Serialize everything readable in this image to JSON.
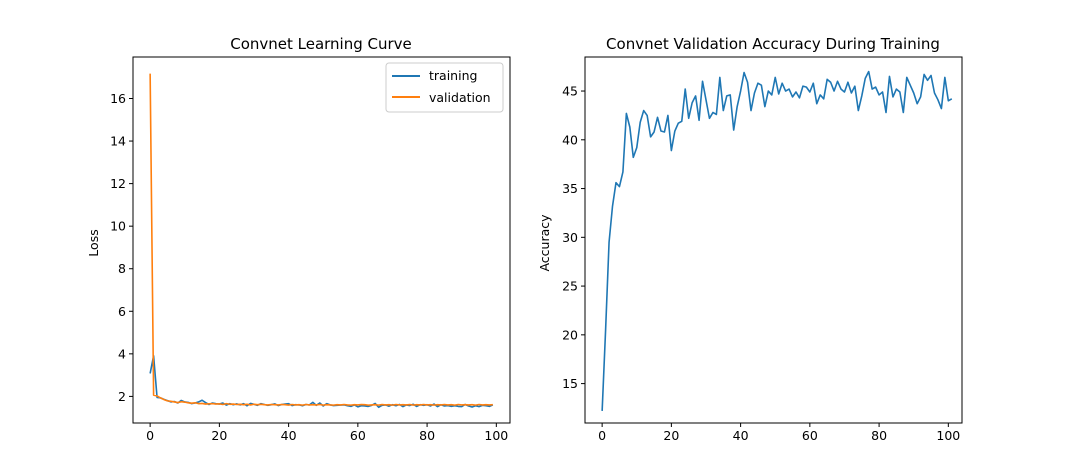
{
  "colors": {
    "training": "#1f77b4",
    "validation": "#ff7f0e"
  },
  "chart_data": [
    {
      "type": "line",
      "title": "Convnet Learning Curve",
      "xlabel": "",
      "ylabel": "Loss",
      "xlim": [
        -4.95,
        103.95
      ],
      "ylim": [
        0.75,
        17.95
      ],
      "xticks": [
        0,
        20,
        40,
        60,
        80,
        100
      ],
      "yticks": [
        2,
        4,
        6,
        8,
        10,
        12,
        14,
        16
      ],
      "grid": false,
      "legend": "top-right",
      "series": [
        {
          "name": "training",
          "values": [
            3.08,
            3.91,
            1.95,
            1.93,
            1.86,
            1.8,
            1.74,
            1.76,
            1.69,
            1.81,
            1.74,
            1.72,
            1.66,
            1.69,
            1.74,
            1.82,
            1.71,
            1.62,
            1.69,
            1.66,
            1.64,
            1.69,
            1.59,
            1.66,
            1.61,
            1.65,
            1.6,
            1.66,
            1.56,
            1.67,
            1.63,
            1.58,
            1.66,
            1.62,
            1.58,
            1.61,
            1.65,
            1.57,
            1.62,
            1.64,
            1.66,
            1.57,
            1.61,
            1.6,
            1.56,
            1.62,
            1.6,
            1.72,
            1.58,
            1.69,
            1.55,
            1.66,
            1.6,
            1.57,
            1.58,
            1.59,
            1.6,
            1.56,
            1.53,
            1.6,
            1.51,
            1.56,
            1.55,
            1.53,
            1.58,
            1.67,
            1.49,
            1.58,
            1.6,
            1.54,
            1.61,
            1.56,
            1.62,
            1.52,
            1.6,
            1.57,
            1.63,
            1.53,
            1.61,
            1.58,
            1.61,
            1.55,
            1.64,
            1.52,
            1.61,
            1.55,
            1.57,
            1.53,
            1.56,
            1.53,
            1.52,
            1.62,
            1.55,
            1.5,
            1.56,
            1.52,
            1.58,
            1.56,
            1.53,
            1.6
          ]
        },
        {
          "name": "validation",
          "values": [
            17.17,
            2.06,
            2.02,
            1.93,
            1.85,
            1.79,
            1.77,
            1.74,
            1.71,
            1.75,
            1.73,
            1.7,
            1.68,
            1.7,
            1.66,
            1.67,
            1.64,
            1.65,
            1.66,
            1.64,
            1.65,
            1.62,
            1.66,
            1.63,
            1.64,
            1.62,
            1.63,
            1.61,
            1.63,
            1.6,
            1.63,
            1.61,
            1.63,
            1.61,
            1.6,
            1.62,
            1.61,
            1.6,
            1.62,
            1.61,
            1.59,
            1.62,
            1.6,
            1.61,
            1.59,
            1.62,
            1.6,
            1.61,
            1.6,
            1.62,
            1.59,
            1.61,
            1.6,
            1.59,
            1.61,
            1.6,
            1.62,
            1.6,
            1.59,
            1.61,
            1.6,
            1.62,
            1.61,
            1.59,
            1.6,
            1.61,
            1.59,
            1.62,
            1.6,
            1.61,
            1.59,
            1.62,
            1.6,
            1.61,
            1.6,
            1.62,
            1.59,
            1.61,
            1.6,
            1.62,
            1.6,
            1.61,
            1.59,
            1.61,
            1.6,
            1.62,
            1.6,
            1.61,
            1.59,
            1.62,
            1.6,
            1.61,
            1.6,
            1.61,
            1.59,
            1.62,
            1.6,
            1.61,
            1.6,
            1.61
          ]
        }
      ]
    },
    {
      "type": "line",
      "title": "Convnet Validation Accuracy During Training",
      "xlabel": "",
      "ylabel": "Accuracy",
      "xlim": [
        -4.95,
        103.95
      ],
      "ylim": [
        10.96,
        48.49
      ],
      "xticks": [
        0,
        20,
        40,
        60,
        80,
        100
      ],
      "yticks": [
        15,
        20,
        25,
        30,
        35,
        40,
        45
      ],
      "grid": false,
      "series": [
        {
          "values": [
            12.2,
            20.5,
            29.5,
            33.2,
            35.6,
            35.2,
            36.7,
            42.7,
            41.3,
            38.2,
            39.2,
            41.8,
            43.0,
            42.5,
            40.3,
            40.8,
            42.3,
            40.9,
            40.8,
            42.5,
            38.9,
            40.9,
            41.7,
            41.9,
            45.2,
            42.2,
            43.8,
            44.5,
            42.0,
            46.0,
            44.1,
            42.2,
            42.8,
            42.6,
            46.4,
            43.0,
            44.5,
            44.6,
            41.0,
            43.4,
            45.0,
            46.9,
            45.9,
            43.0,
            44.8,
            45.8,
            45.6,
            43.4,
            45.0,
            44.6,
            46.4,
            44.7,
            45.8,
            45.0,
            45.2,
            44.4,
            44.9,
            44.3,
            45.5,
            45.4,
            44.9,
            45.8,
            43.7,
            44.6,
            44.2,
            46.2,
            45.9,
            45.0,
            46.0,
            45.2,
            44.9,
            45.9,
            44.8,
            45.5,
            43.0,
            44.5,
            46.3,
            47.0,
            45.2,
            45.4,
            44.6,
            44.9,
            42.8,
            46.5,
            44.4,
            45.2,
            44.9,
            42.8,
            46.4,
            45.6,
            44.8,
            43.7,
            44.4,
            46.7,
            46.1,
            46.6,
            44.8,
            44.1,
            43.2,
            46.4,
            44.0,
            44.2
          ]
        }
      ]
    }
  ]
}
